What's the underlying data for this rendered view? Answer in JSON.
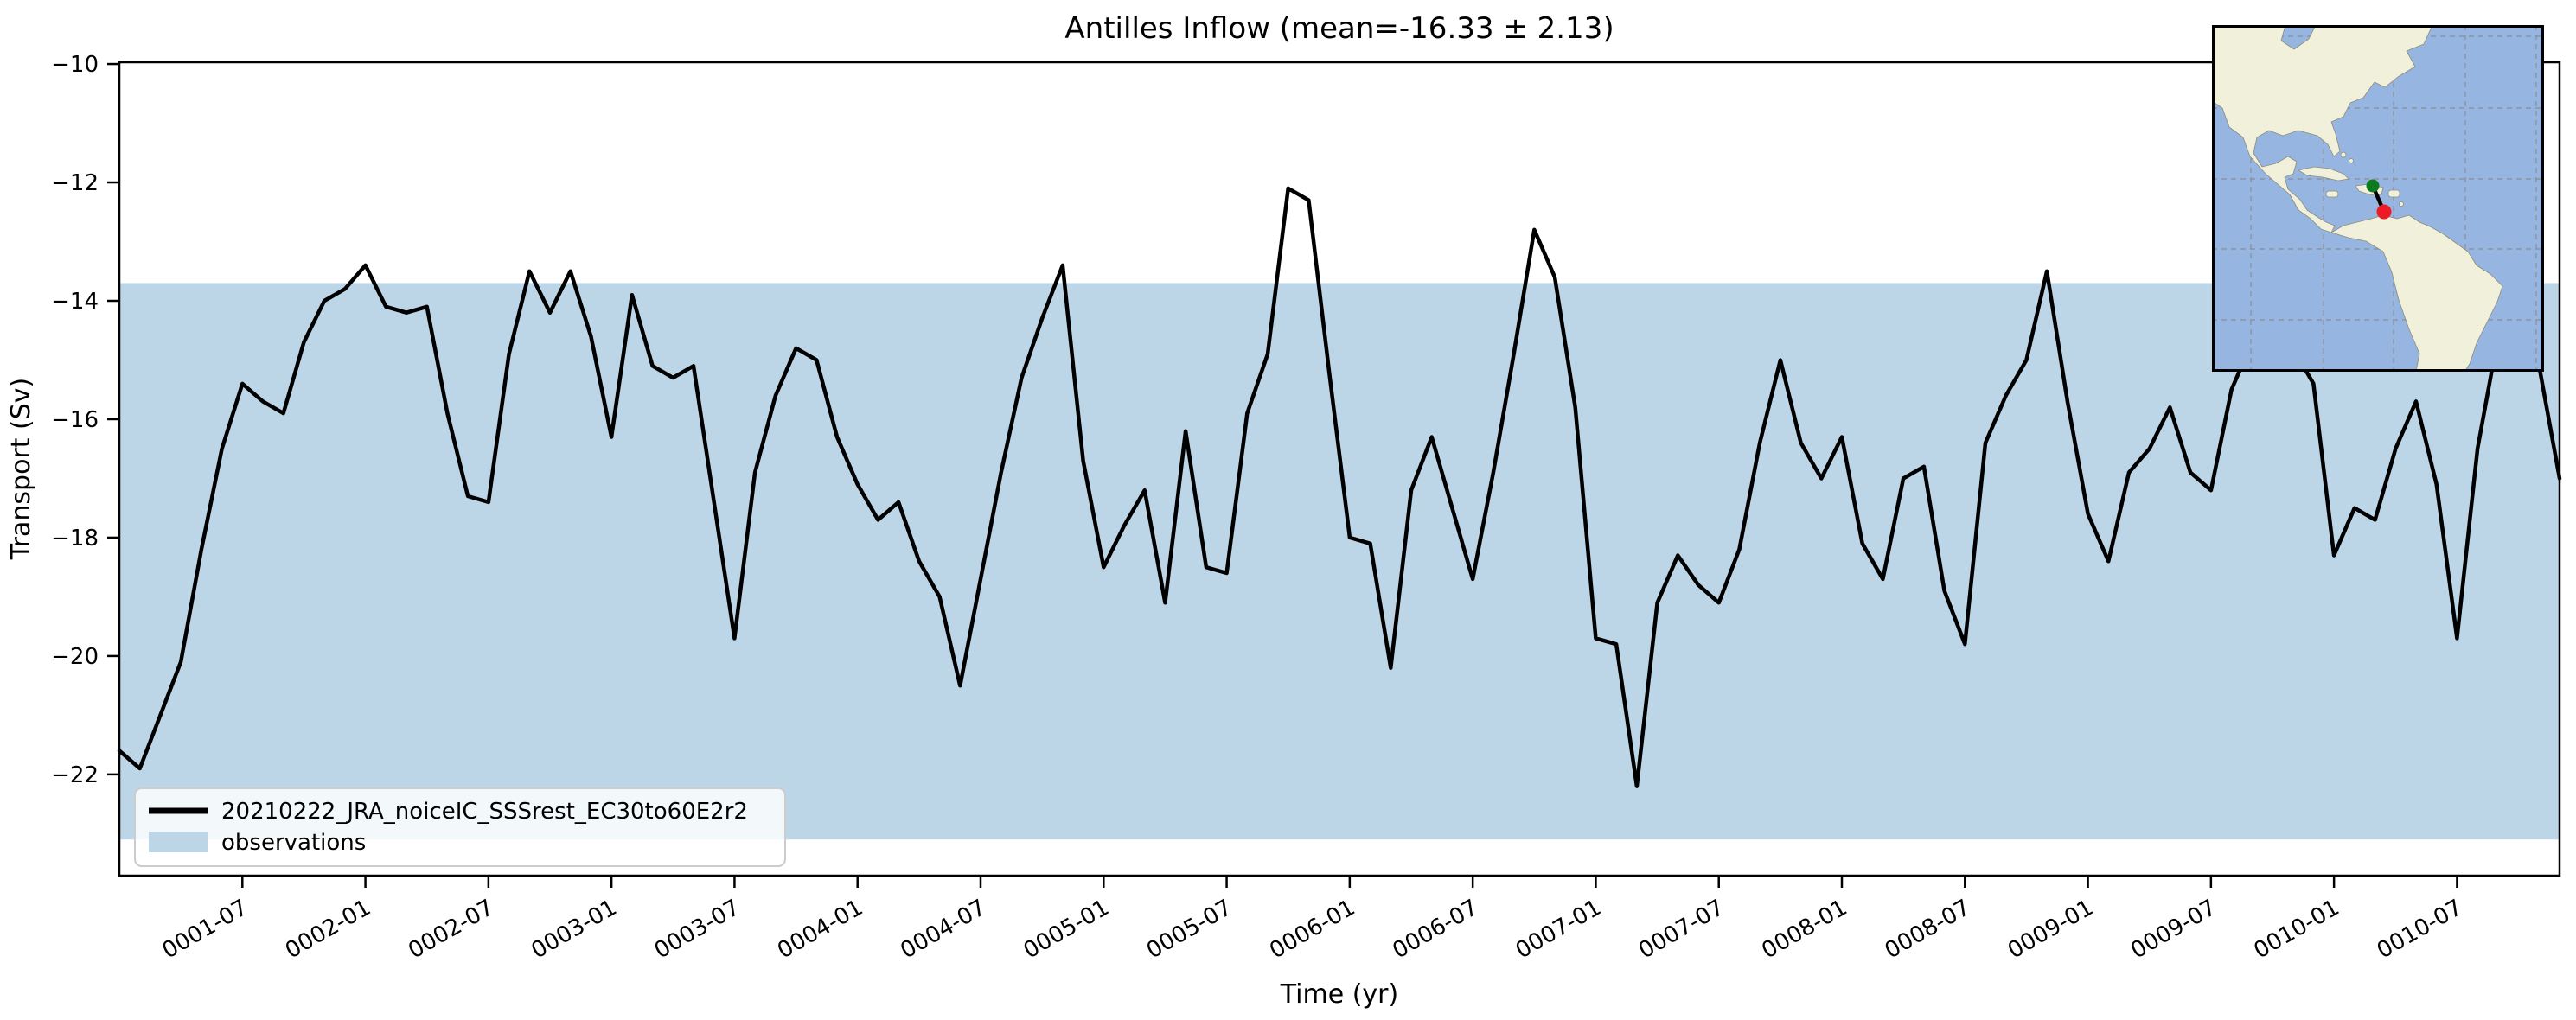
{
  "figure": {
    "title": "Antilles Inflow (mean=-16.33 ± 2.13)"
  },
  "axes": {
    "ylabel": "Transport (Sv)",
    "xlabel": "Time (yr)",
    "y_tick_labels": [
      "−10",
      "−12",
      "−14",
      "−16",
      "−18",
      "−20",
      "−22"
    ],
    "y_tick_values": [
      -10,
      -12,
      -14,
      -16,
      -18,
      -20,
      -22
    ],
    "x_tick_labels": [
      "0001-07",
      "0002-01",
      "0002-07",
      "0003-01",
      "0003-07",
      "0004-01",
      "0004-07",
      "0005-01",
      "0005-07",
      "0006-01",
      "0006-07",
      "0007-01",
      "0007-07",
      "0008-01",
      "0008-07",
      "0009-01",
      "0009-07",
      "0010-01",
      "0010-07"
    ],
    "x_tick_month_indices": [
      6,
      12,
      18,
      24,
      30,
      36,
      42,
      48,
      54,
      60,
      66,
      72,
      78,
      84,
      90,
      96,
      102,
      108,
      114
    ]
  },
  "legend": {
    "series_label": "20210222_JRA_noiceIC_SSSrest_EC30to60E2r2",
    "band_label": "observations"
  },
  "colors": {
    "line": "#000000",
    "observations_band": "#bcd6e8",
    "legend_border": "#cccccc",
    "inset_ocean": "#96b5e1",
    "inset_land": "#f0f0db",
    "inset_grid": "#888888",
    "marker_start": "#0d7a1f",
    "marker_end": "#ed1b24"
  },
  "chart_data": {
    "type": "line",
    "title": "Antilles Inflow (mean=-16.33 ± 2.13)",
    "xlabel": "Time (yr)",
    "ylabel": "Transport (Sv)",
    "x_start": "0001-01",
    "x_end": "0010-12",
    "x_freq": "monthly",
    "ylim": [
      -23.71,
      -9.97
    ],
    "grid": false,
    "legend_position": "lower left",
    "series": [
      {
        "name": "20210222_JRA_noiceIC_SSSrest_EC30to60E2r2",
        "mean": -16.33,
        "std": 2.13,
        "values": [
          -21.6,
          -21.9,
          -21.0,
          -20.1,
          -18.2,
          -16.5,
          -15.4,
          -15.7,
          -15.9,
          -14.7,
          -14.0,
          -13.8,
          -13.4,
          -14.1,
          -14.2,
          -14.1,
          -15.9,
          -17.3,
          -17.4,
          -14.9,
          -13.5,
          -14.2,
          -13.5,
          -14.6,
          -16.3,
          -13.9,
          -15.1,
          -15.3,
          -15.1,
          -17.4,
          -19.7,
          -16.9,
          -15.6,
          -14.8,
          -15.0,
          -16.3,
          -17.1,
          -17.7,
          -17.4,
          -18.4,
          -19.0,
          -20.5,
          -18.7,
          -16.9,
          -15.3,
          -14.3,
          -13.4,
          -16.7,
          -18.5,
          -17.8,
          -17.2,
          -19.1,
          -16.2,
          -18.5,
          -18.6,
          -15.9,
          -14.9,
          -12.1,
          -12.3,
          -15.2,
          -18.0,
          -18.1,
          -20.2,
          -17.2,
          -16.3,
          -17.5,
          -18.7,
          -16.9,
          -14.9,
          -12.8,
          -13.6,
          -15.8,
          -19.7,
          -19.8,
          -22.2,
          -19.1,
          -18.3,
          -18.8,
          -19.1,
          -18.2,
          -16.4,
          -15.0,
          -16.4,
          -17.0,
          -16.3,
          -18.1,
          -18.7,
          -17.0,
          -16.8,
          -18.9,
          -19.8,
          -16.4,
          -15.6,
          -15.0,
          -13.5,
          -15.7,
          -17.6,
          -18.4,
          -16.9,
          -16.5,
          -15.8,
          -16.9,
          -17.2,
          -15.5,
          -14.7,
          -14.3,
          -14.8,
          -15.4,
          -18.3,
          -17.5,
          -17.7,
          -16.5,
          -15.7,
          -17.1,
          -19.7,
          -16.5,
          -14.6,
          -13.4,
          -15.1,
          -17.0
        ]
      }
    ],
    "observations_band": {
      "label": "observations",
      "from": -23.1,
      "to": -13.7
    }
  },
  "inset_map": {
    "description": "Caribbean / Americas locator map with Antilles section line",
    "section_start_marker": "green-dot",
    "section_end_marker": "red-dot"
  }
}
